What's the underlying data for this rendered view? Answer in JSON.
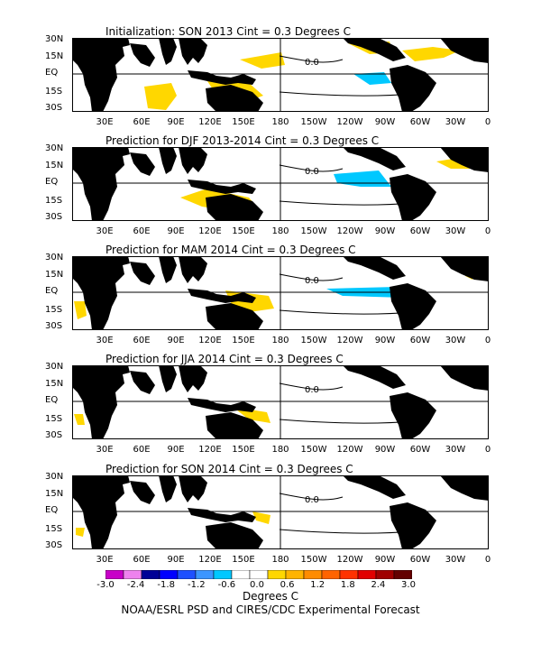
{
  "panels": [
    {
      "title": "Initialization: SON 2013   Cint = 0.3 Degrees C",
      "contour_label": "0.0"
    },
    {
      "title": "Prediction for DJF 2013-2014   Cint = 0.3 Degrees C",
      "contour_label": "0.0"
    },
    {
      "title": "Prediction for MAM 2014   Cint = 0.3 Degrees C",
      "contour_label": "0.0"
    },
    {
      "title": "Prediction for JJA 2014   Cint = 0.3 Degrees C",
      "contour_label": "0.0"
    },
    {
      "title": "Prediction for SON 2014   Cint = 0.3 Degrees C",
      "contour_label": "0.0"
    }
  ],
  "lat_labels": [
    "30N",
    "15N",
    "EQ",
    "15S",
    "30S"
  ],
  "lon_labels": [
    "30E",
    "60E",
    "90E",
    "120E",
    "150E",
    "180",
    "150W",
    "120W",
    "90W",
    "60W",
    "30W",
    "0"
  ],
  "colorbar": {
    "labels": [
      "-3.0",
      "-2.4",
      "-1.8",
      "-1.2",
      "-0.6",
      "0.0",
      "0.6",
      "1.2",
      "1.8",
      "2.4",
      "3.0"
    ],
    "colors": [
      "#c800c8",
      "#ee82ee",
      "#000096",
      "#0000ff",
      "#1e50ff",
      "#3c96ff",
      "#00c8ff",
      "#ffffff",
      "#ffffff",
      "#ffd700",
      "#ffb400",
      "#ff8c00",
      "#ff6400",
      "#ff3200",
      "#e10000",
      "#a00000",
      "#640000"
    ],
    "units": "Degrees C"
  },
  "credit": "NOAA/ESRL PSD and CIRES/CDC Experimental Forecast",
  "colors": {
    "land": "#000000",
    "warm": "#ffd700",
    "cold": "#00c8ff",
    "line": "#000000"
  }
}
